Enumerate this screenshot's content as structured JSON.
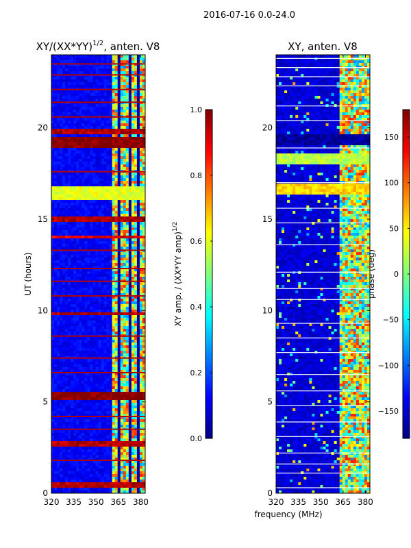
{
  "figure": {
    "suptitle": "2016-07-16 0.0-24.0",
    "shared_xlabel": "frequency (MHz)"
  },
  "colormap": {
    "name": "jet",
    "stops": [
      "#00007f",
      "#0000ff",
      "#007fff",
      "#00ffff",
      "#7fff7f",
      "#ffff00",
      "#ff7f00",
      "#ff0000",
      "#7f0000"
    ]
  },
  "chart_data": [
    {
      "type": "heatmap",
      "title": "XY/(XX*YY)^(1/2), anten. V8",
      "title_main": "XY/(XX*YY)",
      "title_sup": "1/2",
      "title_tail": ", anten. V8",
      "xlabel": "",
      "ylabel": "UT (hours)",
      "xlim": [
        320,
        383
      ],
      "ylim": [
        0,
        24
      ],
      "xticks": [
        320,
        335,
        350,
        365,
        380
      ],
      "xtick_labels": [
        "320",
        "335",
        "350",
        "365",
        "380"
      ],
      "yticks": [
        0,
        5,
        10,
        15,
        20
      ],
      "ytick_labels": [
        "0",
        "5",
        "10",
        "15",
        "20"
      ],
      "colorbar": {
        "label": "XY amp. / (XX*YY amp)^(1/2)",
        "label_main": "XY amp. / (XX*YY amp)",
        "label_sup": "1/2",
        "range": [
          0.0,
          1.0
        ],
        "ticks": [
          0.0,
          0.2,
          0.4,
          0.6,
          0.8,
          1.0
        ],
        "tick_labels": [
          "0.0",
          "0.2",
          "0.4",
          "0.6",
          "0.8",
          "1.0"
        ]
      },
      "background_value": 0.12,
      "hot_band_mhz": [
        360,
        383
      ],
      "dark_gap_columns_mhz": [
        366,
        372,
        378
      ],
      "strong_rows_ut": [
        {
          "ut": 0.4,
          "value": 0.95,
          "width": 0.2
        },
        {
          "ut": 2.7,
          "value": 0.95,
          "width": 0.15
        },
        {
          "ut": 5.3,
          "value": 1.0,
          "width": 0.45
        },
        {
          "ut": 9.8,
          "value": 0.95,
          "width": 0.12
        },
        {
          "ut": 14.0,
          "value": 0.9,
          "width": 0.12
        },
        {
          "ut": 15.0,
          "value": 0.95,
          "width": 0.2
        },
        {
          "ut": 16.4,
          "value": 0.6,
          "width": 0.6
        },
        {
          "ut": 19.2,
          "value": 1.0,
          "width": 0.5
        },
        {
          "ut": 19.8,
          "value": 0.95,
          "width": 0.2
        }
      ],
      "thin_rows_ut": [
        1.8,
        3.5,
        4.2,
        6.6,
        7.4,
        8.6,
        10.8,
        11.6,
        12.3,
        13.3,
        17.6,
        20.6,
        21.4,
        22.1,
        22.9,
        23.5
      ]
    },
    {
      "type": "heatmap",
      "title": "XY, anten. V8",
      "xlabel": "",
      "ylabel": "",
      "xlim": [
        320,
        383
      ],
      "ylim": [
        0,
        24
      ],
      "xticks": [
        320,
        335,
        350,
        365,
        380
      ],
      "xtick_labels": [
        "320",
        "335",
        "350",
        "365",
        "380"
      ],
      "yticks": [
        0,
        5,
        10,
        15,
        20
      ],
      "ytick_labels": [
        "0",
        "5",
        "10",
        "15",
        "20"
      ],
      "colorbar": {
        "label": "phase (deg)",
        "range": [
          -180,
          180
        ],
        "ticks": [
          -150,
          -100,
          -50,
          0,
          50,
          100,
          150
        ],
        "tick_labels": [
          "−150",
          "−100",
          "−50",
          "0",
          "50",
          "100",
          "150"
        ]
      },
      "background_value": -150,
      "hot_band_mhz": [
        362,
        383
      ],
      "strong_rows_ut": [
        {
          "ut": 16.7,
          "value": 60,
          "width": 0.5
        },
        {
          "ut": 18.3,
          "value": 20,
          "width": 0.5
        },
        {
          "ut": 19.4,
          "value": -170,
          "width": 0.5
        }
      ],
      "white_rows_ut": [
        0.3,
        1.1,
        1.6,
        2.2,
        3.1,
        3.9,
        4.8,
        5.6,
        6.5,
        7.7,
        8.5,
        9.3,
        10.6,
        11.2,
        12.1,
        13.6,
        14.8,
        15.6,
        17.0,
        18.9,
        20.4,
        21.2,
        22.3,
        22.8,
        23.3,
        23.8
      ]
    }
  ]
}
